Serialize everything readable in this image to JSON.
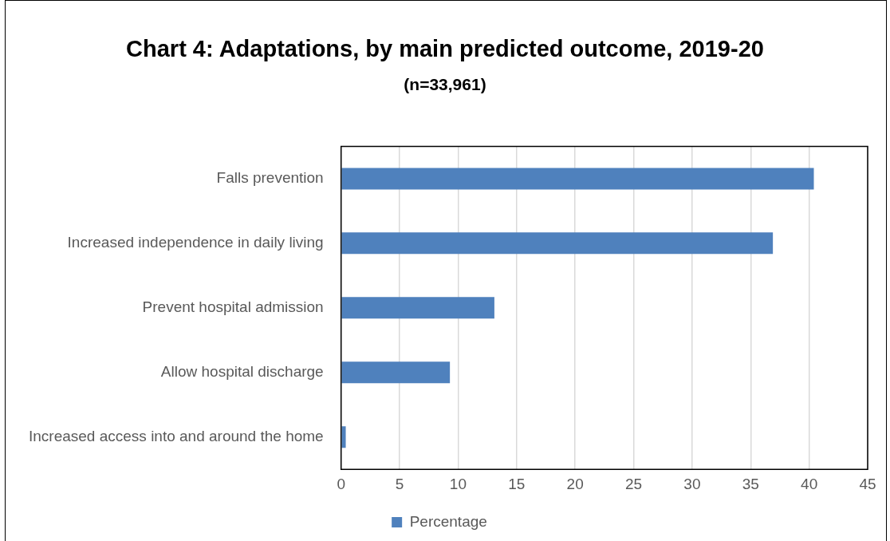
{
  "chart_data": {
    "type": "bar",
    "orientation": "horizontal",
    "title": "Chart 4: Adaptations, by main predicted outcome, 2019-20",
    "subtitle": "(n=33,961)",
    "categories": [
      "Falls prevention",
      "Increased independence in daily living",
      "Prevent hospital admission",
      "Allow hospital discharge",
      "Increased access into and around the home"
    ],
    "series": [
      {
        "name": "Percentage",
        "color": "#4f81bd",
        "values": [
          40.4,
          36.9,
          13.1,
          9.3,
          0.4
        ]
      }
    ],
    "xlim": [
      0,
      45
    ],
    "xticks": [
      0,
      5,
      10,
      15,
      20,
      25,
      30,
      35,
      40,
      45
    ],
    "grid": "x",
    "legend": "bottom"
  }
}
